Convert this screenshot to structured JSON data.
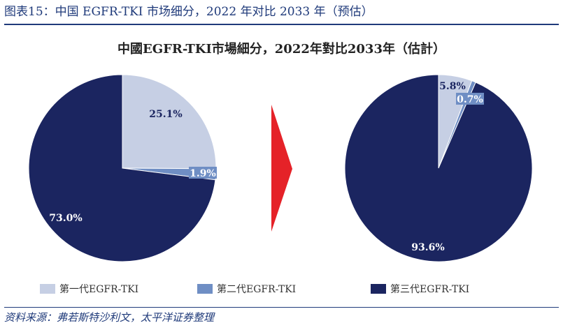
{
  "figure_header": "图表15：中国 EGFR-TKI 市场细分，2022 年对比 2033 年（预估）",
  "source": "资料来源：弗若斯特沙利文，太平洋证券整理",
  "colors": {
    "gen1": "#c6cfe4",
    "gen2": "#6f8ec4",
    "gen3": "#1b2560",
    "arrow": "#e52228",
    "header": "#1f3a7a"
  },
  "chart_data": {
    "type": "pie",
    "title": "中國EGFR-TKI市場細分，2022年對比2033年（估計）",
    "legend": [
      "第一代EGFR-TKI",
      "第二代EGFR-TKI",
      "第三代EGFR-TKI"
    ],
    "legend_position": "bottom",
    "pies": [
      {
        "slices": [
          {
            "name": "第一代EGFR-TKI",
            "value": 25.1,
            "label": "25.1%"
          },
          {
            "name": "第二代EGFR-TKI",
            "value": 1.9,
            "label": "1.9%"
          },
          {
            "name": "第三代EGFR-TKI",
            "value": 73.0,
            "label": "73.0%"
          }
        ]
      },
      {
        "slices": [
          {
            "name": "第一代EGFR-TKI",
            "value": 5.8,
            "label": "5.8%"
          },
          {
            "name": "第二代EGFR-TKI",
            "value": 0.7,
            "label": "0.7%"
          },
          {
            "name": "第三代EGFR-TKI",
            "value": 93.6,
            "label": "93.6%"
          }
        ]
      }
    ]
  }
}
